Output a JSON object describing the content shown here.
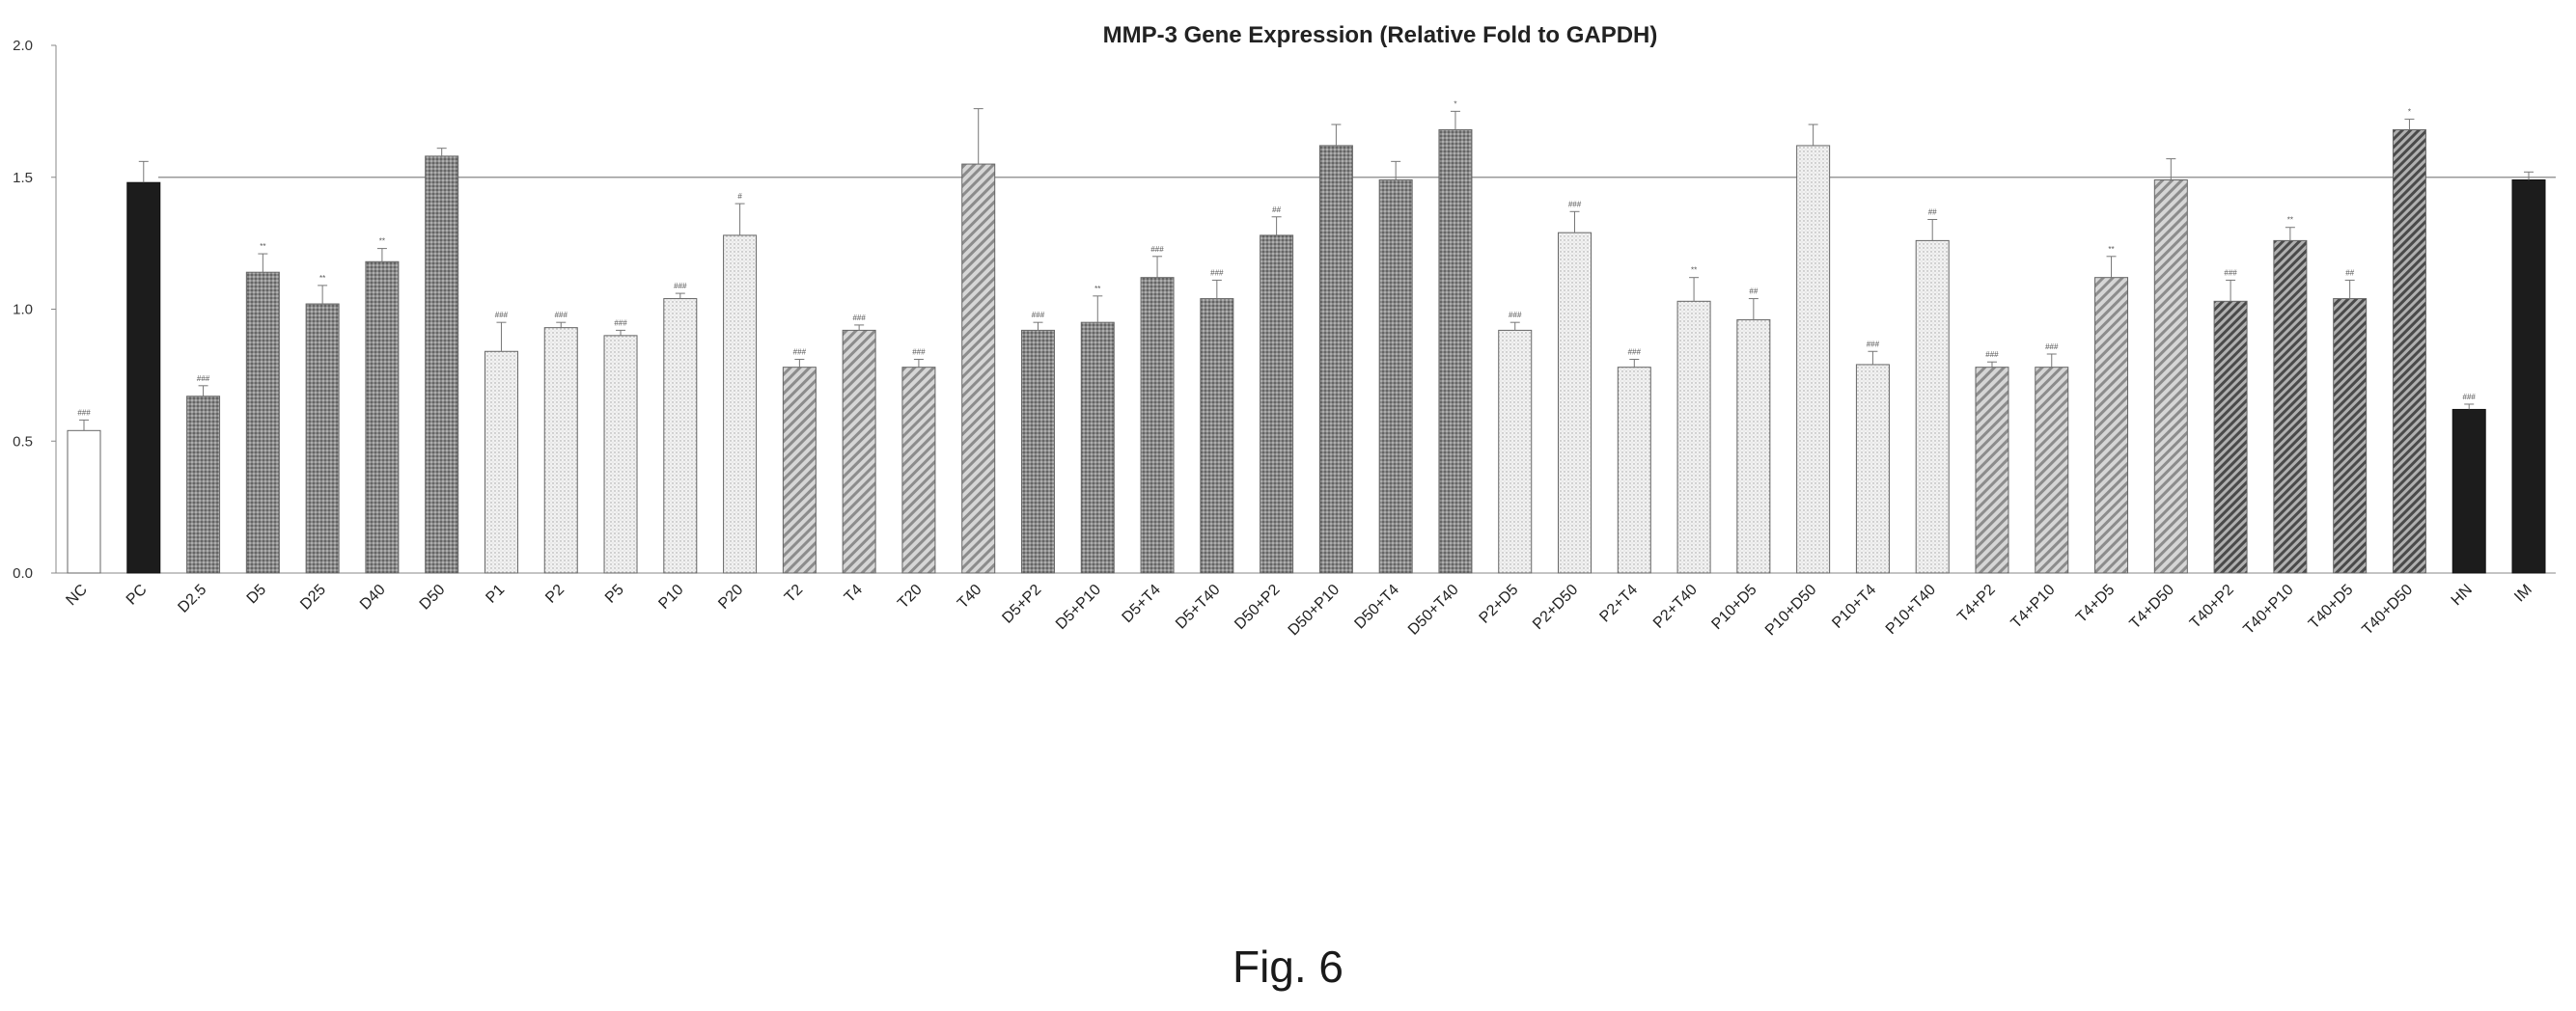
{
  "figure_caption": "Fig. 6",
  "chart_data": {
    "type": "bar",
    "title": "MMP-3 Gene Expression (Relative Fold to GAPDH)",
    "xlabel": "",
    "ylabel": "",
    "ylim": [
      0,
      2.0
    ],
    "yticks": [
      "0.0",
      "0.5",
      "1.0",
      "1.5",
      "2.0"
    ],
    "reference_line": 1.5,
    "grid": false,
    "categories": [
      "NC",
      "PC",
      "D2.5",
      "D5",
      "D25",
      "D40",
      "D50",
      "P1",
      "P2",
      "P5",
      "P10",
      "P20",
      "T2",
      "T4",
      "T20",
      "T40",
      "D5+P2",
      "D5+P10",
      "D5+T4",
      "D5+T40",
      "D50+P2",
      "D50+P10",
      "D50+T4",
      "D50+T40",
      "P2+D5",
      "P2+D50",
      "P2+T4",
      "P2+T40",
      "P10+D5",
      "P10+D50",
      "P10+T4",
      "P10+T40",
      "T4+P2",
      "T4+P10",
      "T4+D5",
      "T4+D50",
      "T40+P2",
      "T40+P10",
      "T40+D5",
      "T40+D50",
      "HN",
      "IM"
    ],
    "values": [
      0.54,
      1.48,
      0.67,
      1.14,
      1.02,
      1.18,
      1.58,
      0.84,
      0.93,
      0.9,
      1.04,
      1.28,
      0.78,
      0.92,
      0.78,
      1.55,
      0.92,
      0.95,
      1.12,
      1.04,
      1.28,
      1.62,
      1.49,
      1.68,
      0.92,
      1.29,
      0.78,
      1.03,
      0.96,
      1.62,
      0.79,
      1.26,
      0.78,
      0.78,
      1.12,
      1.49,
      1.03,
      1.26,
      1.04,
      1.68,
      0.62,
      1.49
    ],
    "errors": [
      0.04,
      0.08,
      0.04,
      0.07,
      0.07,
      0.05,
      0.03,
      0.11,
      0.02,
      0.02,
      0.02,
      0.12,
      0.03,
      0.02,
      0.03,
      0.21,
      0.03,
      0.1,
      0.08,
      0.07,
      0.07,
      0.08,
      0.07,
      0.07,
      0.03,
      0.08,
      0.03,
      0.09,
      0.08,
      0.08,
      0.05,
      0.08,
      0.02,
      0.05,
      0.08,
      0.08,
      0.08,
      0.05,
      0.07,
      0.04,
      0.02,
      0.03
    ],
    "significance": [
      "###",
      "",
      "###",
      "**",
      "**",
      "**",
      "",
      "###",
      "###",
      "###",
      "###",
      "#",
      "###",
      "###",
      "###",
      "",
      "###",
      "**",
      "###",
      "###",
      "##",
      "",
      "",
      "*",
      "###",
      "###",
      "###",
      "**",
      "##",
      "",
      "###",
      "##",
      "###",
      "###",
      "**",
      "",
      "###",
      "**",
      "##",
      "*",
      "###",
      ""
    ],
    "fills": [
      "white",
      "black",
      "dense-dots",
      "dense-dots",
      "dense-dots",
      "dense-dots",
      "dense-dots",
      "light-dots",
      "light-dots",
      "light-dots",
      "light-dots",
      "light-dots",
      "diagonal",
      "diagonal",
      "diagonal",
      "diagonal",
      "dense-dots",
      "dense-dots",
      "dense-dots",
      "dense-dots",
      "dense-dots",
      "dense-dots",
      "dense-dots",
      "dense-dots",
      "light-dots",
      "light-dots",
      "light-dots",
      "light-dots",
      "light-dots",
      "light-dots",
      "light-dots",
      "light-dots",
      "diagonal",
      "diagonal",
      "diagonal",
      "diagonal",
      "diagonal-dark",
      "diagonal-dark",
      "diagonal-dark",
      "diagonal-dark",
      "black",
      "black"
    ]
  }
}
